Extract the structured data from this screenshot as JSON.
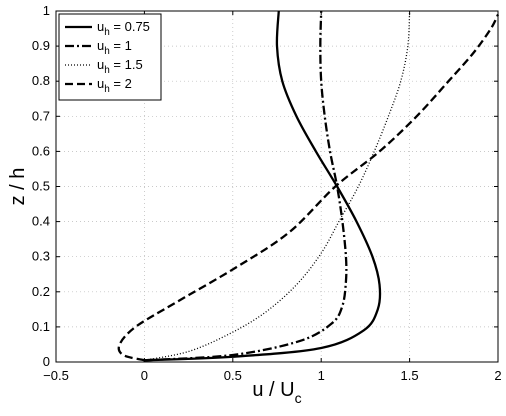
{
  "chart_data": {
    "type": "line",
    "xlabel": "u / U",
    "xlabel_sub": "c",
    "ylabel": "z / h",
    "xlim": [
      -0.5,
      2
    ],
    "ylim": [
      0,
      1
    ],
    "xticks": [
      "−0.5",
      "0",
      "0.5",
      "1",
      "1.5",
      "2"
    ],
    "xtick_values": [
      -0.5,
      0,
      0.5,
      1,
      1.5,
      2
    ],
    "yticks": [
      "0",
      "0.1",
      "0.2",
      "0.3",
      "0.4",
      "0.5",
      "0.6",
      "0.7",
      "0.8",
      "0.9",
      "1"
    ],
    "ytick_values": [
      0,
      0.1,
      0.2,
      0.3,
      0.4,
      0.5,
      0.6,
      0.7,
      0.8,
      0.9,
      1
    ],
    "grid": true,
    "legend_position": "top-left",
    "series": [
      {
        "name": "u",
        "name_sub": "h",
        "name_suffix": " = 0.75",
        "style": "solid",
        "color": "#000000",
        "x": [
          0.0,
          0.5,
          1.0,
          1.24,
          1.32,
          1.33,
          1.29,
          1.2,
          1.09,
          0.97,
          0.86,
          0.78,
          0.75,
          0.76
        ],
        "y": [
          0.005,
          0.015,
          0.04,
          0.09,
          0.15,
          0.22,
          0.3,
          0.4,
          0.5,
          0.6,
          0.7,
          0.8,
          0.9,
          1.0
        ]
      },
      {
        "name": "u",
        "name_sub": "h",
        "name_suffix": " = 1",
        "style": "dashdot",
        "color": "#000000",
        "x": [
          0.0,
          0.5,
          0.88,
          1.06,
          1.12,
          1.14,
          1.14,
          1.12,
          1.09,
          1.05,
          1.02,
          1.0,
          0.995,
          1.0
        ],
        "y": [
          0.005,
          0.02,
          0.06,
          0.11,
          0.16,
          0.23,
          0.3,
          0.4,
          0.5,
          0.6,
          0.7,
          0.8,
          0.9,
          1.0
        ]
      },
      {
        "name": "u",
        "name_sub": "h",
        "name_suffix": " = 1.5",
        "style": "dotted",
        "color": "#000000",
        "x": [
          0.0,
          0.25,
          0.48,
          0.68,
          0.86,
          1.0,
          1.1,
          1.21,
          1.3,
          1.38,
          1.45,
          1.49,
          1.5
        ],
        "y": [
          0.005,
          0.03,
          0.08,
          0.14,
          0.22,
          0.31,
          0.4,
          0.5,
          0.6,
          0.7,
          0.8,
          0.9,
          1.0
        ]
      },
      {
        "name": "u",
        "name_sub": "h",
        "name_suffix": " = 2",
        "style": "dashed",
        "color": "#000000",
        "x": [
          0.0,
          -0.12,
          -0.14,
          -0.05,
          0.18,
          0.52,
          0.82,
          1.08,
          1.33,
          1.54,
          1.72,
          1.86,
          1.96,
          2.0
        ],
        "y": [
          0.005,
          0.02,
          0.05,
          0.1,
          0.17,
          0.27,
          0.37,
          0.5,
          0.6,
          0.7,
          0.8,
          0.88,
          0.95,
          0.99
        ]
      }
    ]
  }
}
